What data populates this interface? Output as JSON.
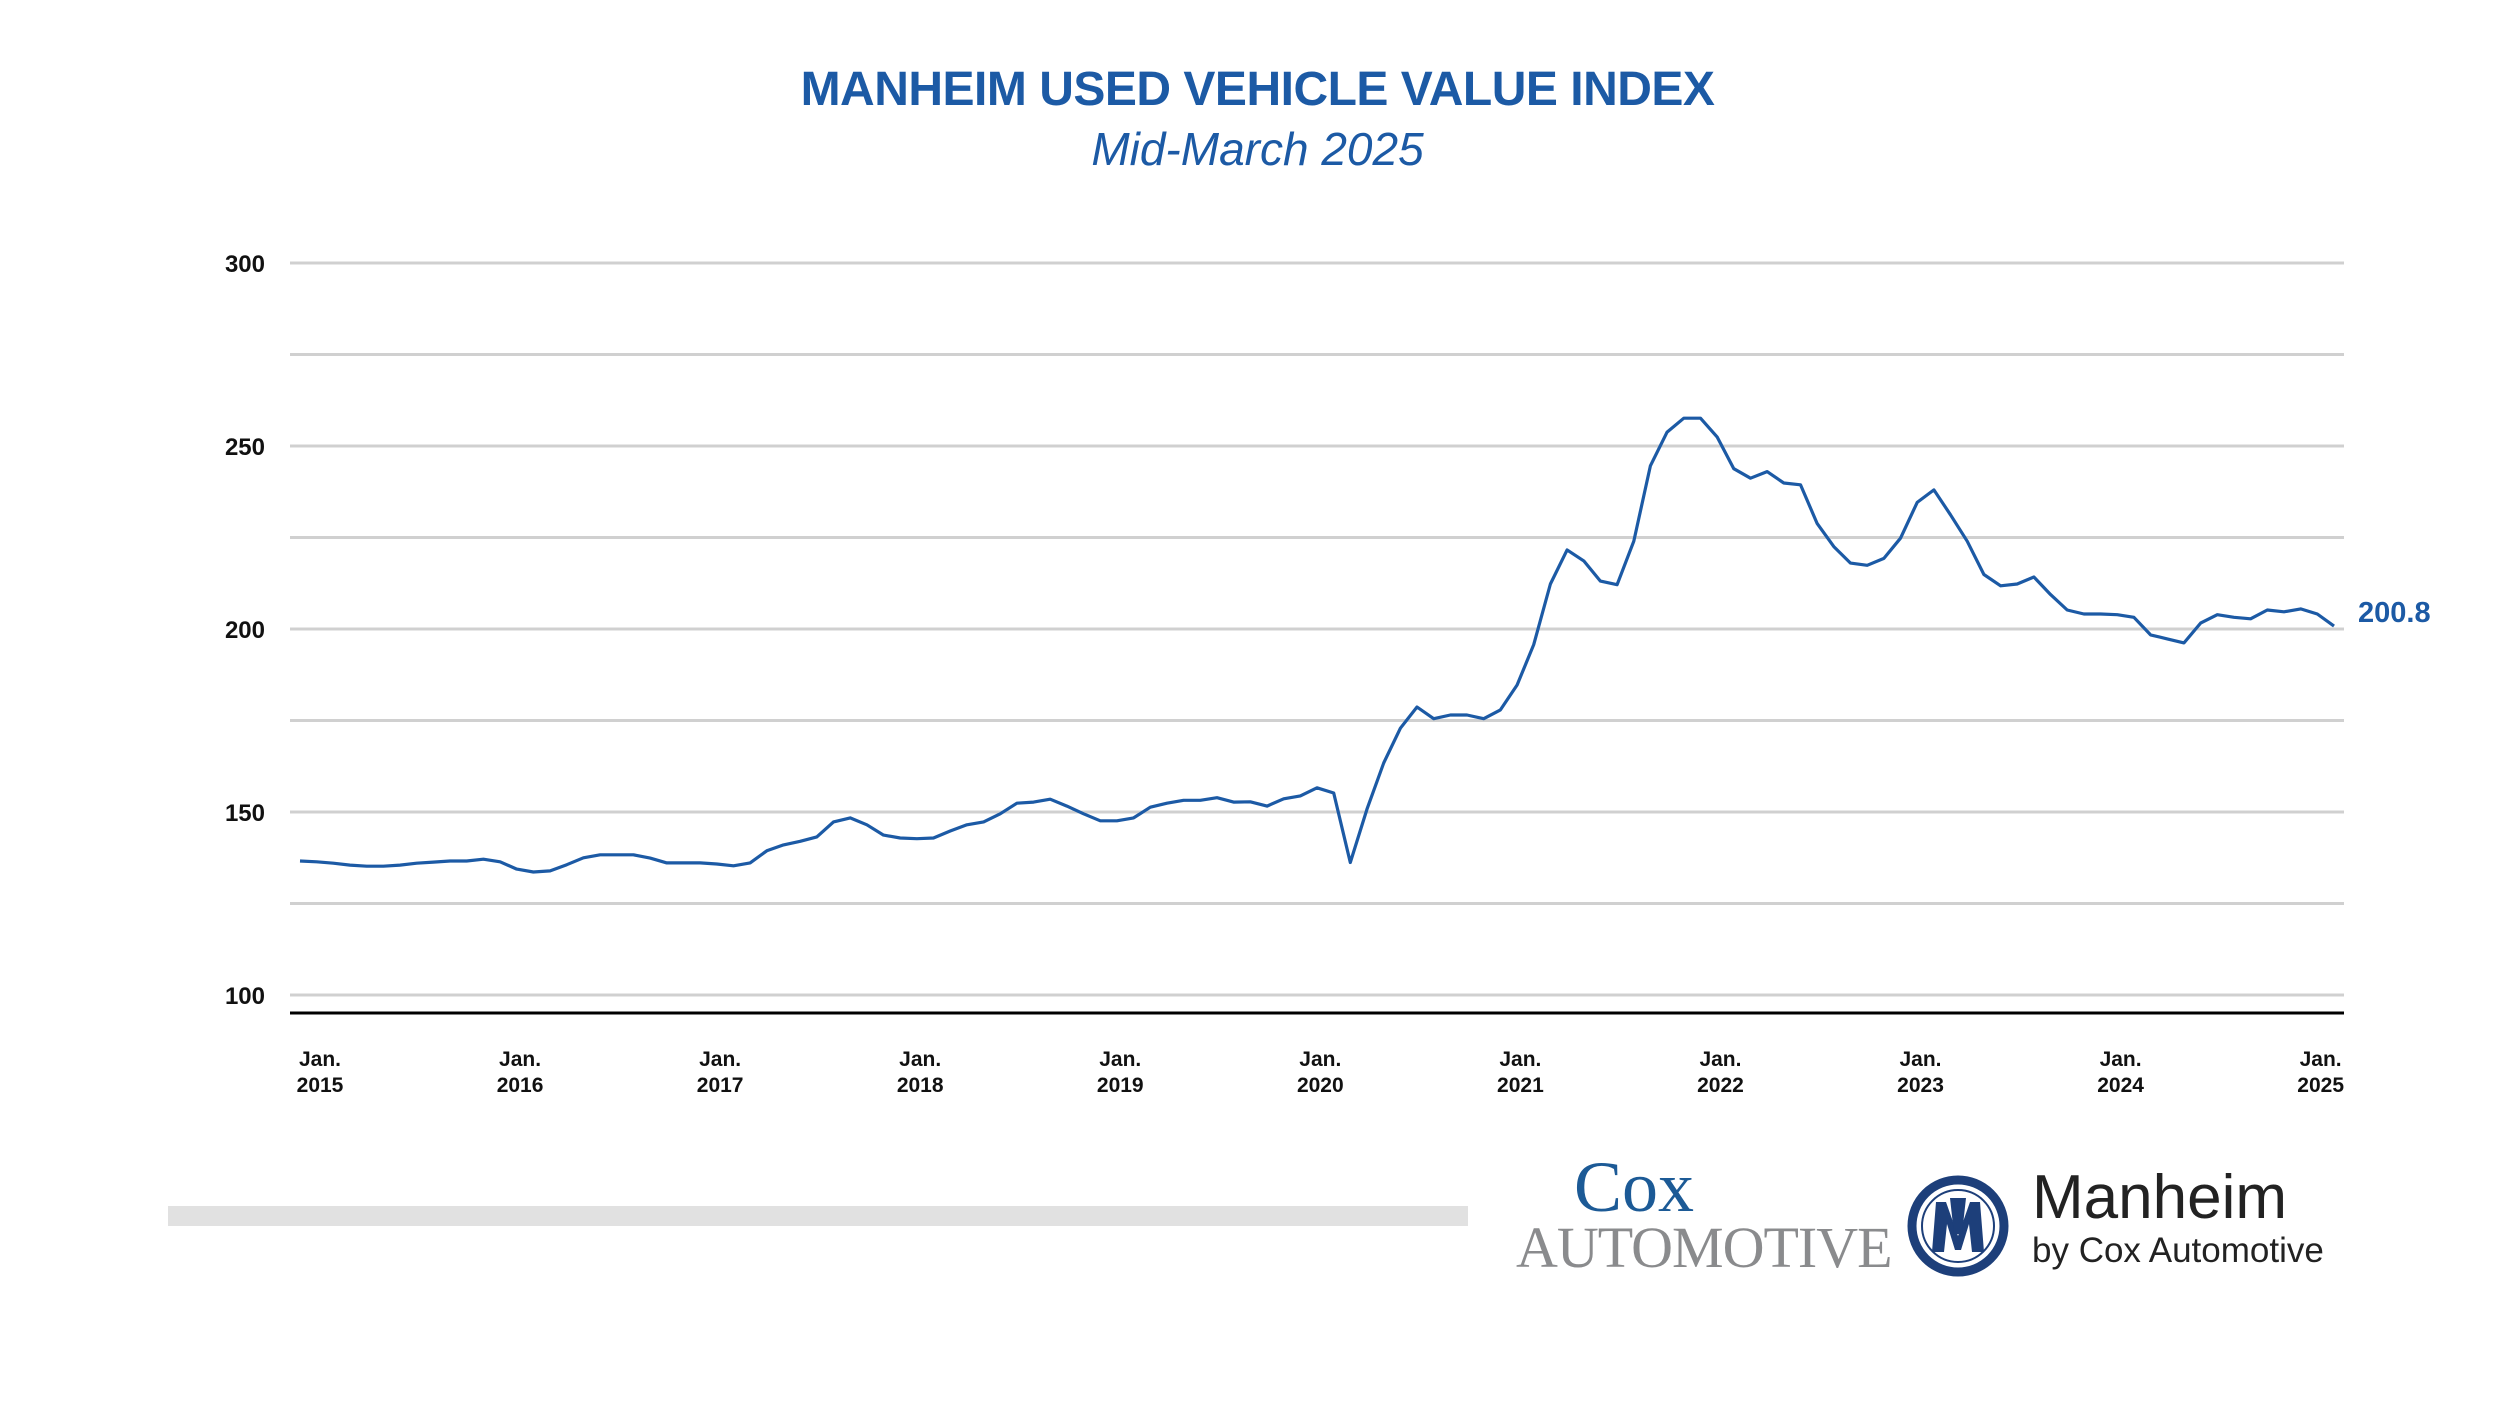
{
  "title": "MANHEIM USED VEHICLE VALUE INDEX",
  "subtitle": "Mid-March 2025",
  "colors": {
    "accent": "#1c5aa5",
    "grid": "#d0d0d0",
    "axis": "#000000",
    "footer_bar": "#e1e1e1"
  },
  "chart_data": {
    "type": "line",
    "title": "MANHEIM USED VEHICLE VALUE INDEX",
    "subtitle": "Mid-March 2025",
    "x_start": "2015-01",
    "x_frequency": "monthly",
    "x_end": "2025-03",
    "xlabel": "",
    "ylabel": "",
    "ylim": [
      100,
      300
    ],
    "y_ticks": [
      100,
      150,
      200,
      250,
      300
    ],
    "y_tick_labels": [
      "100",
      "150",
      "200",
      "250",
      "300"
    ],
    "grid": true,
    "grid_step": 25,
    "x_tick_labels": [
      {
        "line1": "Jan.",
        "line2": "2015"
      },
      {
        "line1": "Jan.",
        "line2": "2016"
      },
      {
        "line1": "Jan.",
        "line2": "2017"
      },
      {
        "line1": "Jan.",
        "line2": "2018"
      },
      {
        "line1": "Jan.",
        "line2": "2019"
      },
      {
        "line1": "Jan.",
        "line2": "2020"
      },
      {
        "line1": "Jan.",
        "line2": "2021"
      },
      {
        "line1": "Jan.",
        "line2": "2022"
      },
      {
        "line1": "Jan.",
        "line2": "2023"
      },
      {
        "line1": "Jan.",
        "line2": "2024"
      },
      {
        "line1": "Jan.",
        "line2": "2025"
      }
    ],
    "series": [
      {
        "color": "#1c5aa5",
        "values": [
          136.6,
          136.4,
          136.0,
          135.5,
          135.2,
          135.2,
          135.5,
          136.0,
          136.3,
          136.6,
          136.6,
          137.1,
          136.4,
          134.4,
          133.6,
          133.9,
          135.6,
          137.5,
          138.3,
          138.3,
          138.3,
          137.4,
          136.1,
          136.1,
          136.1,
          135.8,
          135.3,
          136.1,
          139.4,
          141.0,
          142.0,
          143.2,
          147.3,
          148.4,
          146.5,
          143.7,
          142.9,
          142.7,
          142.9,
          144.8,
          146.5,
          147.3,
          149.5,
          152.4,
          152.7,
          153.5,
          151.6,
          149.5,
          147.6,
          147.6,
          148.4,
          151.3,
          152.4,
          153.2,
          153.2,
          153.9,
          152.7,
          152.8,
          151.6,
          153.6,
          154.4,
          156.6,
          155.2,
          136.2,
          150.8,
          163.4,
          172.9,
          178.7,
          175.5,
          176.5,
          176.5,
          175.5,
          177.9,
          184.7,
          195.7,
          212.3,
          221.6,
          218.6,
          213.1,
          212.1,
          224.0,
          244.6,
          253.8,
          257.6,
          257.6,
          252.5,
          243.8,
          241.2,
          243.0,
          239.9,
          239.4,
          228.8,
          222.5,
          218.0,
          217.4,
          219.3,
          224.8,
          234.6,
          238.0,
          231.2,
          224.0,
          214.9,
          211.8,
          212.3,
          214.2,
          209.4,
          205.2,
          204.1,
          204.1,
          203.9,
          203.2,
          198.4,
          197.3,
          196.2,
          201.6,
          203.9,
          203.2,
          202.8,
          205.2,
          204.7,
          205.5,
          204.1,
          200.8
        ]
      }
    ],
    "annotations": [
      {
        "text": "200.8",
        "at": "last point"
      }
    ]
  },
  "logos": {
    "cox_line1": "Cox",
    "cox_line2": "AUTOMOTIVE",
    "manheim_name": "Manheim",
    "manheim_tagline": "by Cox Automotive"
  }
}
